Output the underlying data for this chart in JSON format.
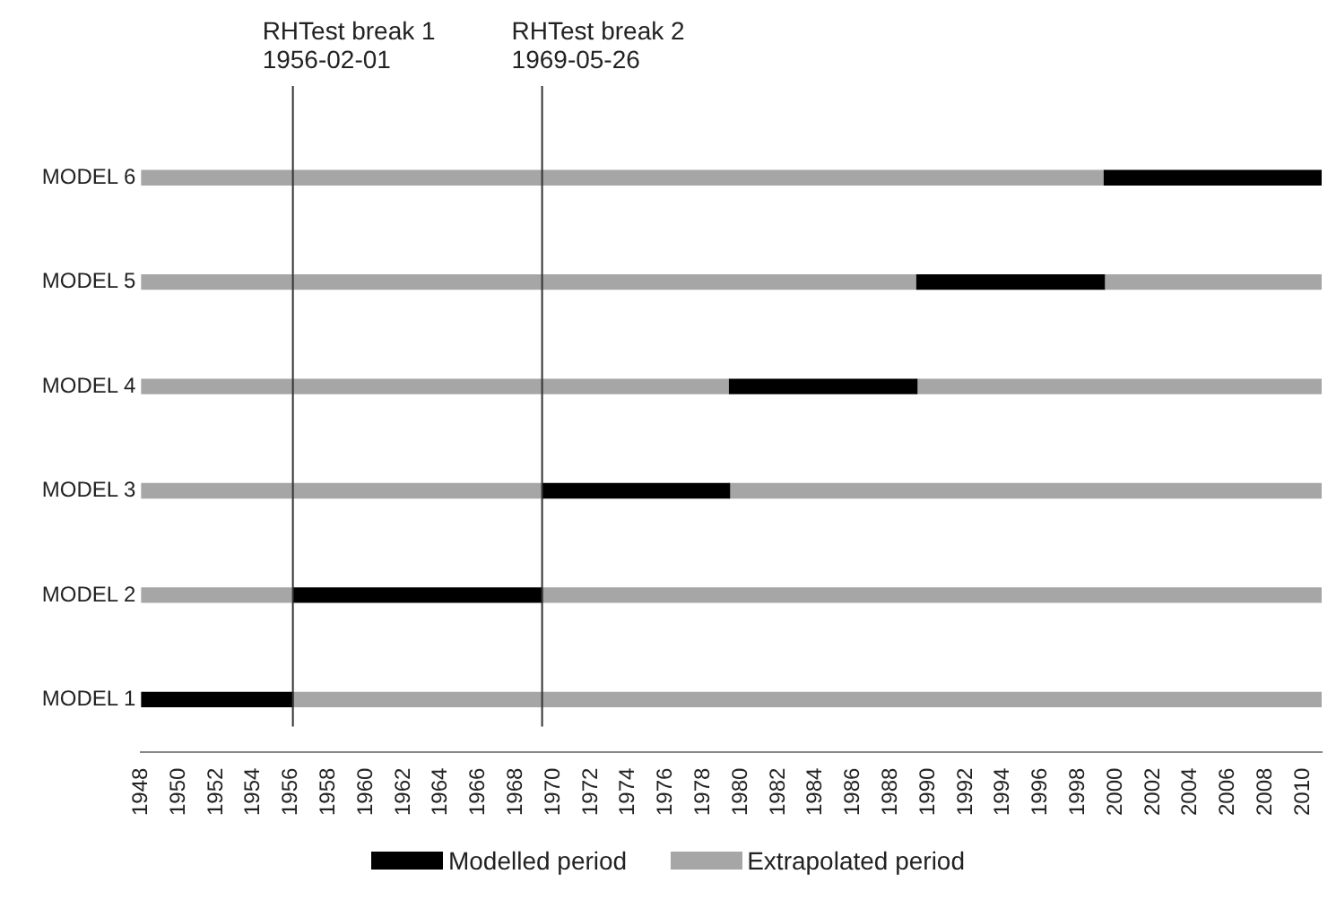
{
  "chart_data": {
    "type": "bar",
    "orientation": "horizontal",
    "categories": [
      "MODEL 6",
      "MODEL 5",
      "MODEL 4",
      "MODEL 3",
      "MODEL 2",
      "MODEL 1"
    ],
    "series": [
      {
        "name": "Modelled period",
        "color": "#000000",
        "base": [
          1999.4,
          1989.4,
          1979.4,
          1969.4,
          1956.1,
          1948
        ],
        "values": [
          11.6,
          10,
          10,
          10,
          13.3,
          8.1
        ]
      },
      {
        "name": "Extrapolated period",
        "color": "#a6a6a6",
        "base": [
          1948,
          1948,
          1948,
          1948,
          1948,
          null
        ],
        "values": [
          51.4,
          41.4,
          31.4,
          21.4,
          8.1,
          null
        ]
      },
      {
        "color": "#a6a6a6",
        "base": [
          null,
          1999.4,
          1989.4,
          1979.4,
          1969.4,
          1956.1
        ],
        "values": [
          null,
          11.6,
          21.6,
          31.6,
          41.6,
          54.9
        ]
      }
    ],
    "xlim": [
      1948,
      2011
    ],
    "xticks": [
      1948,
      1950,
      1952,
      1954,
      1956,
      1958,
      1960,
      1962,
      1964,
      1966,
      1968,
      1970,
      1972,
      1974,
      1976,
      1978,
      1980,
      1982,
      1984,
      1986,
      1988,
      1990,
      1992,
      1994,
      1996,
      1998,
      2000,
      2002,
      2004,
      2006,
      2008,
      2010
    ],
    "ref_lines": [
      {
        "axis": "x",
        "value": 1956.1,
        "label": "RHTest break 1\n1956-02-01",
        "color": "#333333"
      },
      {
        "axis": "x",
        "value": 1969.4,
        "label": "RHTest break 2\n1969-05-26",
        "color": "#333333"
      }
    ],
    "grid": false,
    "legend": "bottom"
  }
}
